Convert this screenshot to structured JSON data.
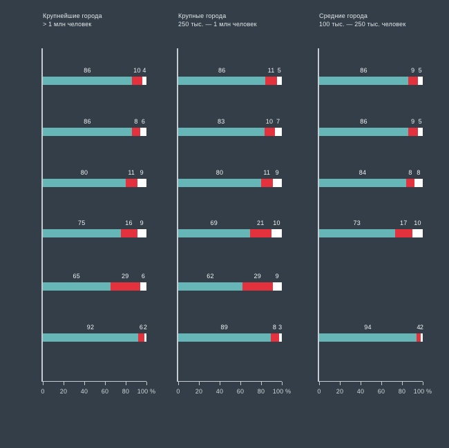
{
  "colors": {
    "background": "#333e48",
    "teal": "#66b6b8",
    "red": "#e3323e",
    "white": "#ffffff",
    "axis": "#c6ccd1",
    "title_text": "#dfe3e6",
    "value_text": "#eef0f2",
    "tick_text": "#ced3d7"
  },
  "chart_data": {
    "type": "bar",
    "orientation": "horizontal",
    "stacked": true,
    "unit": "%",
    "xlim": [
      0,
      100
    ],
    "x_ticks": [
      0,
      20,
      40,
      60,
      80,
      100
    ],
    "x_tick_labels": [
      "0",
      "20",
      "40",
      "60",
      "80",
      "100 %"
    ],
    "segment_names": [
      "teal",
      "red",
      "white"
    ],
    "segment_colors": [
      "teal",
      "red",
      "white"
    ],
    "panels": [
      {
        "title_line1": "Крупнейшие города",
        "title_line2": "> 1 млн человек",
        "rows": [
          [
            86,
            10,
            4
          ],
          [
            86,
            8,
            6
          ],
          [
            80,
            11,
            9
          ],
          [
            75,
            16,
            9
          ],
          [
            65,
            29,
            6
          ],
          [
            92,
            6,
            2
          ]
        ]
      },
      {
        "title_line1": "Крупные города",
        "title_line2": "250 тыс. — 1 млн человек",
        "rows": [
          [
            86,
            11,
            5
          ],
          [
            83,
            10,
            7
          ],
          [
            80,
            11,
            9
          ],
          [
            69,
            21,
            10
          ],
          [
            62,
            29,
            9
          ],
          [
            89,
            8,
            3
          ]
        ]
      },
      {
        "title_line1": "Средние города",
        "title_line2": "100 тыс. — 250 тыс. человек",
        "rows": [
          [
            86,
            9,
            5
          ],
          [
            86,
            9,
            5
          ],
          [
            84,
            8,
            8
          ],
          [
            73,
            17,
            10
          ],
          null,
          [
            94,
            4,
            2
          ]
        ]
      }
    ]
  }
}
